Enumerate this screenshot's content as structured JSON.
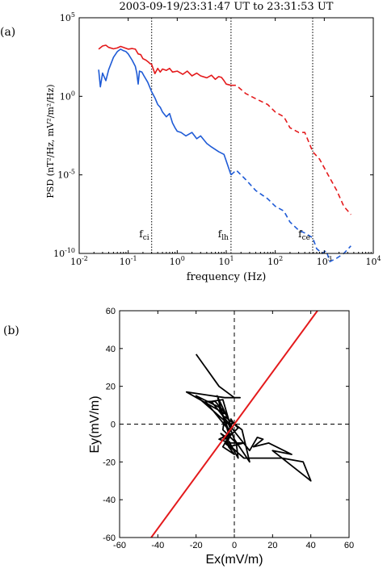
{
  "chart_data": [
    {
      "type": "line",
      "panel_label": "(a)",
      "title": "2003-09-19/23:31:47 UT to 23:31:53 UT",
      "xlabel": "frequency (Hz)",
      "ylabel": "PSD (nT²/Hz, mV²/m²/Hz)",
      "x_scale": "log",
      "y_scale": "log",
      "xlim": [
        0.01,
        10000
      ],
      "ylim": [
        1e-10,
        100000
      ],
      "x_ticks": [
        {
          "value": 0.01,
          "base": "10",
          "exp": "-2"
        },
        {
          "value": 0.1,
          "base": "10",
          "exp": "-1"
        },
        {
          "value": 1,
          "base": "10",
          "exp": "0"
        },
        {
          "value": 10,
          "base": "10",
          "exp": "1"
        },
        {
          "value": 100,
          "base": "10",
          "exp": "2"
        },
        {
          "value": 1000,
          "base": "10",
          "exp": "3"
        },
        {
          "value": 10000,
          "base": "10",
          "exp": "4"
        }
      ],
      "y_ticks": [
        {
          "value": 1e-10,
          "base": "10",
          "exp": "-10"
        },
        {
          "value": 1e-05,
          "base": "10",
          "exp": "-5"
        },
        {
          "value": 1,
          "base": "10",
          "exp": "0"
        },
        {
          "value": 100000,
          "base": "10",
          "exp": "5"
        }
      ],
      "vlines": [
        {
          "base": "f",
          "sub": "ci",
          "x": 0.3
        },
        {
          "base": "f",
          "sub": "lh",
          "x": 12.5
        },
        {
          "base": "f",
          "sub": "ce",
          "x": 580
        }
      ],
      "series": [
        {
          "color": "#e41a1c",
          "style": "solid",
          "points": [
            [
              0.025,
              1000
            ],
            [
              0.03,
              1600
            ],
            [
              0.035,
              1800
            ],
            [
              0.04,
              1300
            ],
            [
              0.05,
              1050
            ],
            [
              0.06,
              1200
            ],
            [
              0.07,
              1500
            ],
            [
              0.08,
              1300
            ],
            [
              0.1,
              1000
            ],
            [
              0.12,
              1100
            ],
            [
              0.14,
              1000
            ],
            [
              0.16,
              500
            ],
            [
              0.18,
              450
            ],
            [
              0.2,
              250
            ],
            [
              0.23,
              200
            ],
            [
              0.26,
              150
            ],
            [
              0.28,
              120
            ],
            [
              0.3,
              110
            ],
            [
              0.35,
              28
            ],
            [
              0.4,
              60
            ],
            [
              0.45,
              35
            ],
            [
              0.5,
              55
            ],
            [
              0.6,
              45
            ],
            [
              0.7,
              60
            ],
            [
              0.8,
              35
            ],
            [
              1.0,
              40
            ],
            [
              1.3,
              25
            ],
            [
              1.6,
              40
            ],
            [
              2.0,
              20
            ],
            [
              2.5,
              30
            ],
            [
              3.0,
              20
            ],
            [
              4.0,
              15
            ],
            [
              5.0,
              22
            ],
            [
              6.0,
              12
            ],
            [
              7.0,
              18
            ],
            [
              8.0,
              16
            ],
            [
              9.0,
              10
            ],
            [
              10.0,
              6
            ],
            [
              12.5,
              5
            ]
          ]
        },
        {
          "color": "#e41a1c",
          "style": "dashed",
          "points": [
            [
              12.5,
              5
            ],
            [
              16,
              5
            ],
            [
              25,
              1.5
            ],
            [
              40,
              0.7
            ],
            [
              70,
              0.3
            ],
            [
              100,
              0.1
            ],
            [
              150,
              0.05
            ],
            [
              200,
              0.01
            ],
            [
              300,
              0.005
            ],
            [
              400,
              0.005
            ],
            [
              580,
              0.0003
            ],
            [
              800,
              0.0001
            ],
            [
              1200,
              1e-05
            ],
            [
              1800,
              1e-06
            ],
            [
              2500,
              1e-07
            ],
            [
              3500,
              3e-08
            ]
          ]
        },
        {
          "color": "#1f5bd6",
          "style": "solid",
          "points": [
            [
              0.025,
              50
            ],
            [
              0.027,
              4
            ],
            [
              0.03,
              30
            ],
            [
              0.035,
              10
            ],
            [
              0.04,
              50
            ],
            [
              0.05,
              300
            ],
            [
              0.06,
              700
            ],
            [
              0.07,
              1000
            ],
            [
              0.08,
              800
            ],
            [
              0.09,
              700
            ],
            [
              0.1,
              500
            ],
            [
              0.12,
              200
            ],
            [
              0.14,
              80
            ],
            [
              0.15,
              30
            ],
            [
              0.16,
              6
            ],
            [
              0.17,
              40
            ],
            [
              0.19,
              35
            ],
            [
              0.21,
              20
            ],
            [
              0.25,
              8
            ],
            [
              0.3,
              2
            ],
            [
              0.35,
              0.8
            ],
            [
              0.4,
              0.3
            ],
            [
              0.45,
              0.2
            ],
            [
              0.5,
              0.1
            ],
            [
              0.6,
              0.05
            ],
            [
              0.7,
              0.08
            ],
            [
              0.8,
              0.02
            ],
            [
              0.9,
              0.01
            ],
            [
              1.0,
              0.006
            ],
            [
              1.2,
              0.005
            ],
            [
              1.5,
              0.003
            ],
            [
              2.0,
              0.005
            ],
            [
              2.5,
              0.002
            ],
            [
              3.0,
              0.003
            ],
            [
              4.0,
              0.001
            ],
            [
              5.0,
              0.0006
            ],
            [
              7.0,
              0.0003
            ],
            [
              9.0,
              0.0002
            ],
            [
              12.5,
              1e-05
            ]
          ]
        },
        {
          "color": "#1f5bd6",
          "style": "dashed",
          "points": [
            [
              12.5,
              1e-05
            ],
            [
              16,
              2e-05
            ],
            [
              25,
              5e-06
            ],
            [
              40,
              1e-06
            ],
            [
              70,
              3e-07
            ],
            [
              100,
              1e-07
            ],
            [
              150,
              5e-08
            ],
            [
              200,
              1e-08
            ],
            [
              300,
              3e-09
            ],
            [
              400,
              2e-09
            ],
            [
              580,
              1e-09
            ],
            [
              700,
              2e-10
            ],
            [
              900,
              1e-10
            ],
            [
              1100,
              1.5e-10
            ],
            [
              1300,
              3e-11
            ],
            [
              1800,
              5e-11
            ],
            [
              2500,
              1e-10
            ],
            [
              3500,
              3e-10
            ]
          ]
        }
      ]
    },
    {
      "type": "line",
      "panel_label": "(b)",
      "xlabel": "Ex(mV/m)",
      "ylabel": "Ey(mV/m)",
      "xlim": [
        -60,
        60
      ],
      "ylim": [
        -60,
        60
      ],
      "x_ticks": [
        "-60",
        "-40",
        "-20",
        "0",
        "20",
        "40",
        "60"
      ],
      "y_ticks": [
        "-60",
        "-40",
        "-20",
        "0",
        "20",
        "40",
        "60"
      ],
      "reference_lines": [
        {
          "x": 0
        },
        {
          "y": 0
        }
      ],
      "fit_line": {
        "color": "#e41a1c",
        "slope": 1.38,
        "intercept": 0
      },
      "hodogram": {
        "color": "#000000",
        "points": [
          [
            -20,
            37
          ],
          [
            -8,
            20
          ],
          [
            0,
            14
          ],
          [
            3,
            14
          ],
          [
            -5,
            14
          ],
          [
            -25,
            17
          ],
          [
            -4,
            5
          ],
          [
            -10,
            12
          ],
          [
            -15,
            12
          ],
          [
            -3,
            -3
          ],
          [
            -8,
            9
          ],
          [
            -20,
            15
          ],
          [
            -2,
            -1
          ],
          [
            -6,
            13
          ],
          [
            -12,
            12
          ],
          [
            -1,
            -2
          ],
          [
            -9,
            15
          ],
          [
            -3,
            -5
          ],
          [
            -4,
            -7
          ],
          [
            -7,
            -5
          ],
          [
            -2,
            -10
          ],
          [
            -5,
            -10
          ],
          [
            0,
            -14
          ],
          [
            -3,
            -9
          ],
          [
            2,
            -18
          ],
          [
            1,
            -10
          ],
          [
            -1,
            -8
          ],
          [
            -6,
            -3
          ],
          [
            -5,
            4
          ],
          [
            4,
            -3
          ],
          [
            8,
            -20
          ],
          [
            0,
            -8
          ],
          [
            -3,
            0
          ],
          [
            8,
            -14
          ],
          [
            12,
            -7
          ],
          [
            15,
            -8
          ],
          [
            10,
            -12
          ],
          [
            18,
            -10
          ],
          [
            30,
            -16
          ],
          [
            20,
            -14
          ],
          [
            40,
            -30
          ],
          [
            36,
            -20
          ],
          [
            25,
            -18
          ],
          [
            5,
            -18
          ],
          [
            -5,
            -9
          ],
          [
            -8,
            -8
          ],
          [
            -2,
            -5
          ],
          [
            -6,
            -12
          ],
          [
            0,
            -16
          ],
          [
            -3,
            -12
          ],
          [
            5,
            -10
          ],
          [
            -4,
            -10
          ],
          [
            -2,
            -6
          ],
          [
            2,
            -2
          ],
          [
            -1,
            1
          ],
          [
            -5,
            -8
          ],
          [
            0,
            0
          ],
          [
            -2,
            3
          ]
        ]
      }
    }
  ]
}
